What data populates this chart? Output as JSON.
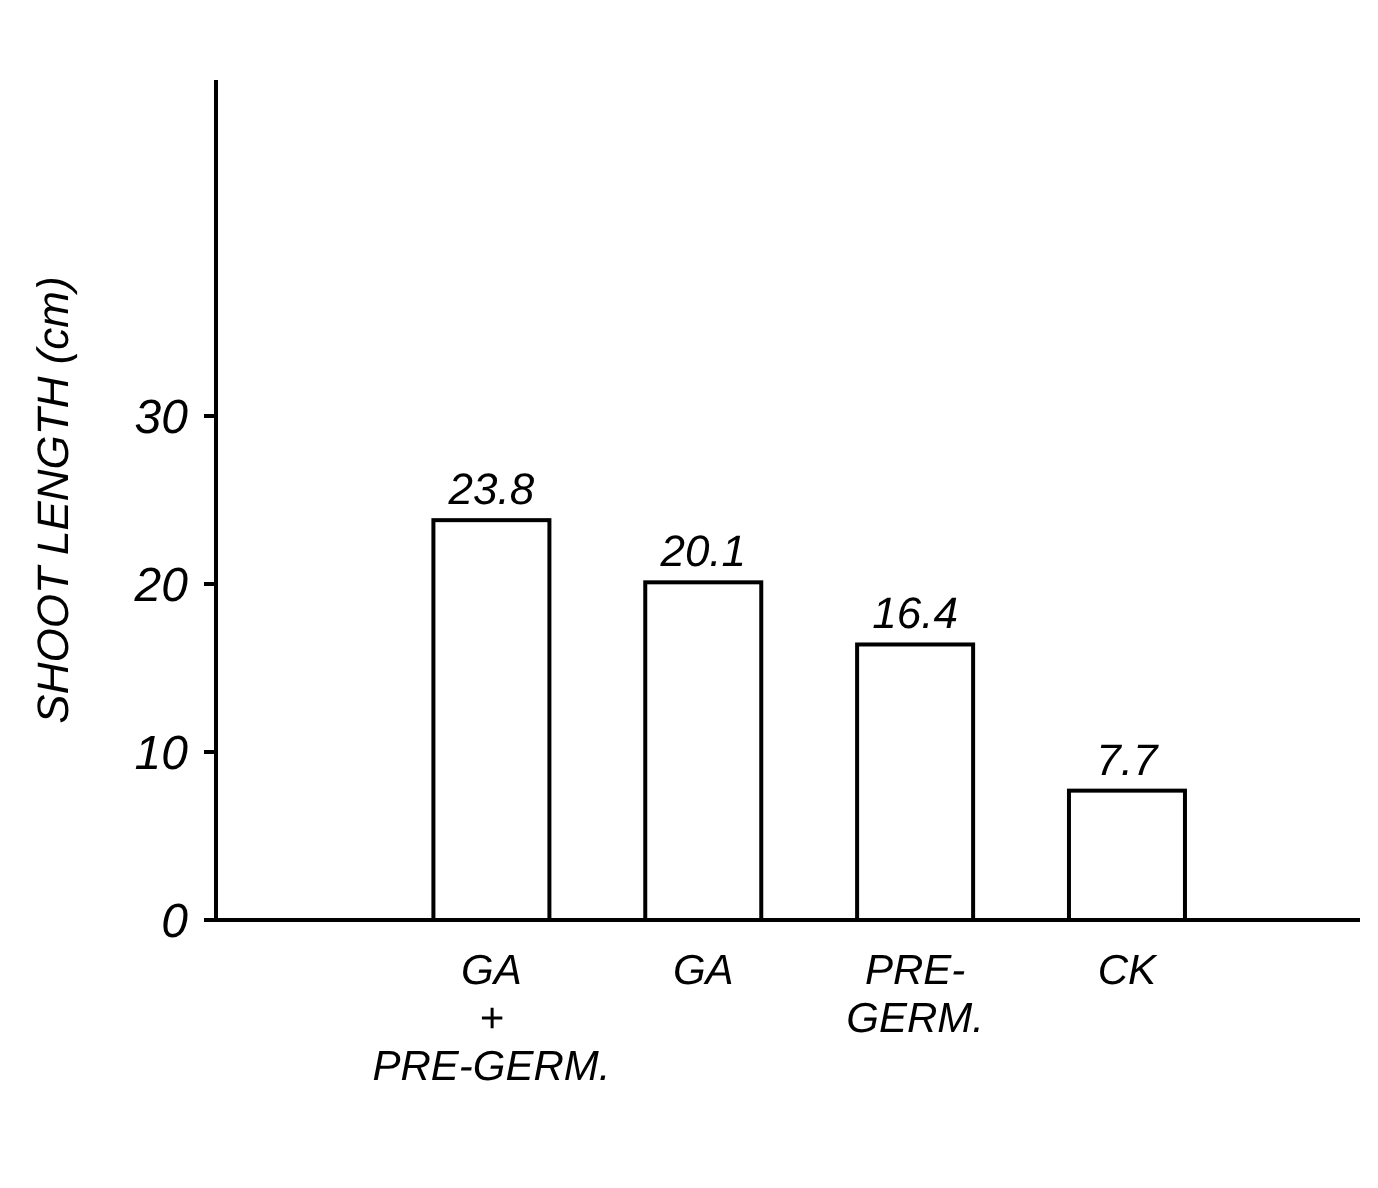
{
  "chart_data": {
    "type": "bar",
    "ylabel": "SHOOT LENGTH (cm)",
    "categories": [
      "GA\n+\nPRE-GERM.",
      "GA",
      "PRE-\nGERM.",
      "CK"
    ],
    "values": [
      23.8,
      20.1,
      16.4,
      7.7
    ],
    "color": "#ffffff",
    "ylim": [
      0,
      50
    ],
    "yticks": [
      0,
      10,
      20,
      30
    ],
    "data_labels": true
  }
}
